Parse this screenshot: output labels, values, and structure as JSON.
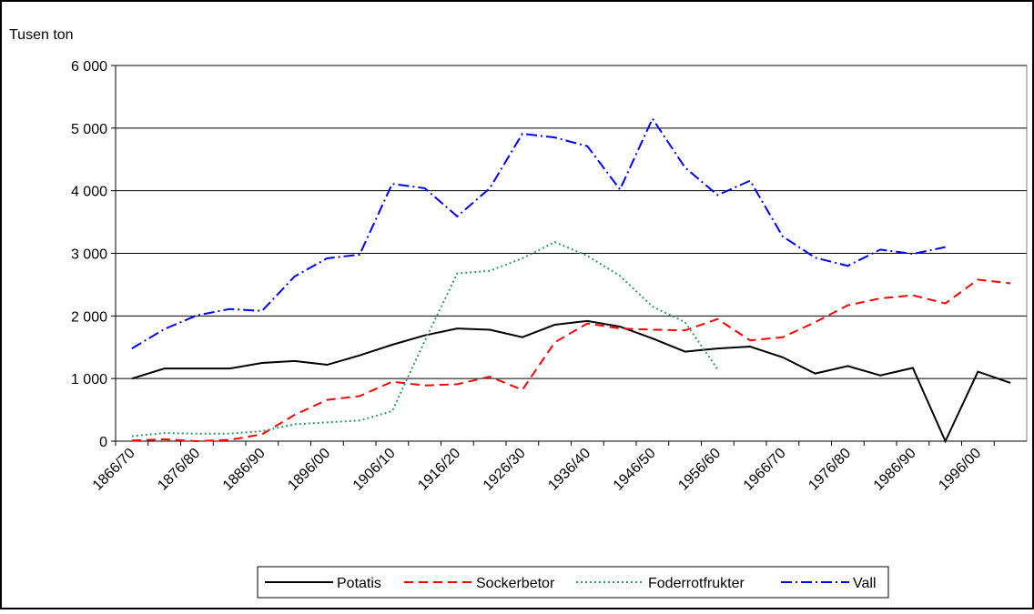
{
  "chart_data": {
    "type": "line",
    "y_label": "Tusen ton",
    "categories": [
      "1866/70",
      null,
      "1876/80",
      null,
      "1886/90",
      null,
      "1896/00",
      null,
      "1906/10",
      null,
      "1916/20",
      null,
      "1926/30",
      null,
      "1936/40",
      null,
      "1946/50",
      null,
      "1956/60",
      null,
      "1966/70",
      null,
      "1976/80",
      null,
      "1986/90",
      null,
      "1996/00",
      null
    ],
    "ylim": [
      0,
      6000
    ],
    "yticks": [
      {
        "value": 0,
        "label": "0"
      },
      {
        "value": 1000,
        "label": "1 000"
      },
      {
        "value": 2000,
        "label": "2 000"
      },
      {
        "value": 3000,
        "label": "3 000"
      },
      {
        "value": 4000,
        "label": "4 000"
      },
      {
        "value": 5000,
        "label": "5 000"
      },
      {
        "value": 6000,
        "label": "6 000"
      }
    ],
    "grid": true,
    "legend": "bottom",
    "series": [
      {
        "name": "Potatis",
        "color": "#000000",
        "dash": "none",
        "values": [
          1000,
          1160,
          1160,
          1160,
          1250,
          1280,
          1220,
          1370,
          1540,
          1690,
          1800,
          1780,
          1660,
          1860,
          1920,
          1830,
          1640,
          1430,
          1480,
          1510,
          1340,
          1080,
          1200,
          1050,
          1170,
          0,
          1110,
          930
        ]
      },
      {
        "name": "Sockerbetor",
        "color": "#ff0000",
        "dash": "10 6",
        "values": [
          10,
          30,
          0,
          20,
          110,
          420,
          660,
          720,
          950,
          890,
          910,
          1030,
          820,
          1580,
          1880,
          1800,
          1780,
          1770,
          1950,
          1610,
          1660,
          1900,
          2170,
          2280,
          2330,
          2200,
          2580,
          2520
        ]
      },
      {
        "name": "Foderrotfrukter",
        "color": "#339966",
        "dash": "2 3",
        "values": [
          80,
          130,
          120,
          120,
          160,
          270,
          300,
          330,
          480,
          1600,
          2680,
          2720,
          2920,
          3180,
          2960,
          2640,
          2150,
          1900,
          1150,
          null,
          null,
          null,
          null,
          null,
          null,
          null,
          null,
          null
        ]
      },
      {
        "name": "Vall",
        "color": "#0000ff",
        "dash": "12 4 2 4",
        "values": [
          1480,
          1790,
          2010,
          2110,
          2080,
          2630,
          2920,
          2980,
          4110,
          4040,
          3590,
          4040,
          4910,
          4850,
          4710,
          4020,
          5150,
          4370,
          3930,
          4160,
          3270,
          2930,
          2800,
          3060,
          2990,
          3100,
          null,
          null
        ]
      }
    ]
  }
}
